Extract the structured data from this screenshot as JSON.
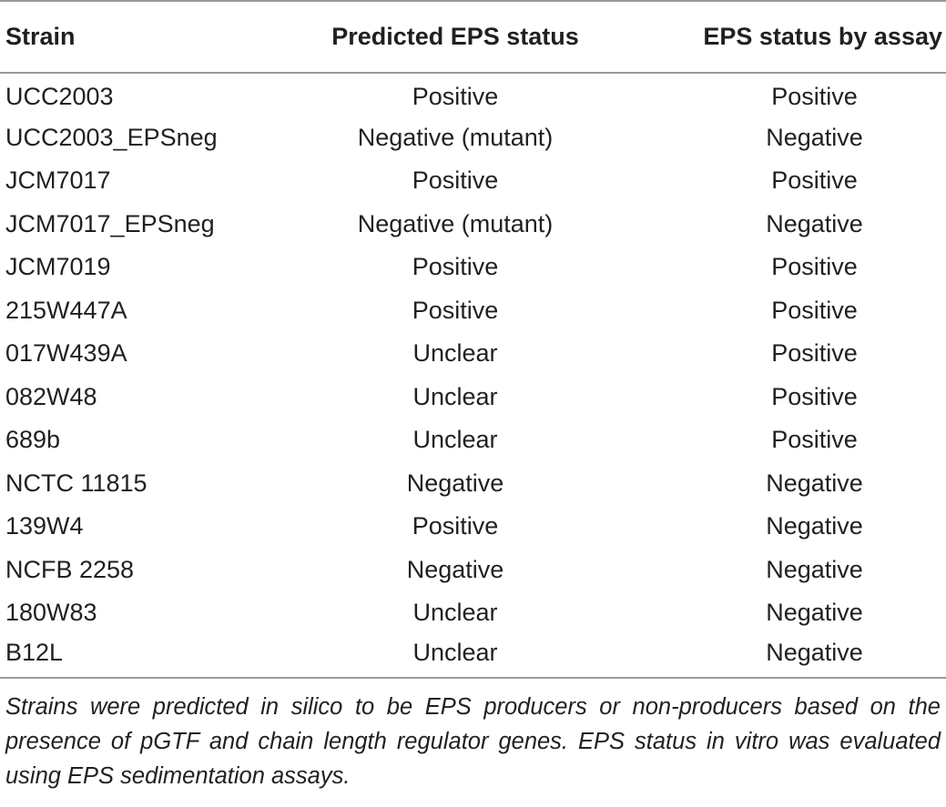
{
  "headers": {
    "strain": "Strain",
    "predicted": "Predicted EPS status",
    "assay": "EPS status by assay"
  },
  "rows": [
    {
      "strain": "UCC2003",
      "predicted": "Positive",
      "assay": "Positive"
    },
    {
      "strain": "UCC2003_EPSneg",
      "predicted": "Negative (mutant)",
      "assay": "Negative"
    },
    {
      "strain": "JCM7017",
      "predicted": "Positive",
      "assay": "Positive"
    },
    {
      "strain": "JCM7017_EPSneg",
      "predicted": "Negative (mutant)",
      "assay": "Negative"
    },
    {
      "strain": "JCM7019",
      "predicted": "Positive",
      "assay": "Positive"
    },
    {
      "strain": "215W447A",
      "predicted": "Positive",
      "assay": "Positive"
    },
    {
      "strain": "017W439A",
      "predicted": "Unclear",
      "assay": "Positive"
    },
    {
      "strain": "082W48",
      "predicted": "Unclear",
      "assay": "Positive"
    },
    {
      "strain": "689b",
      "predicted": "Unclear",
      "assay": "Positive"
    },
    {
      "strain": "NCTC 11815",
      "predicted": "Negative",
      "assay": "Negative"
    },
    {
      "strain": "139W4",
      "predicted": "Positive",
      "assay": "Negative"
    },
    {
      "strain": "NCFB 2258",
      "predicted": "Negative",
      "assay": "Negative"
    },
    {
      "strain": "180W83",
      "predicted": "Unclear",
      "assay": "Negative"
    },
    {
      "strain": "B12L",
      "predicted": "Unclear",
      "assay": "Negative"
    }
  ],
  "footnote": "Strains were predicted in silico to be EPS producers or non-producers based on the presence of pGTF and chain length regulator genes. EPS status in vitro was evaluated using EPS sedimentation assays."
}
